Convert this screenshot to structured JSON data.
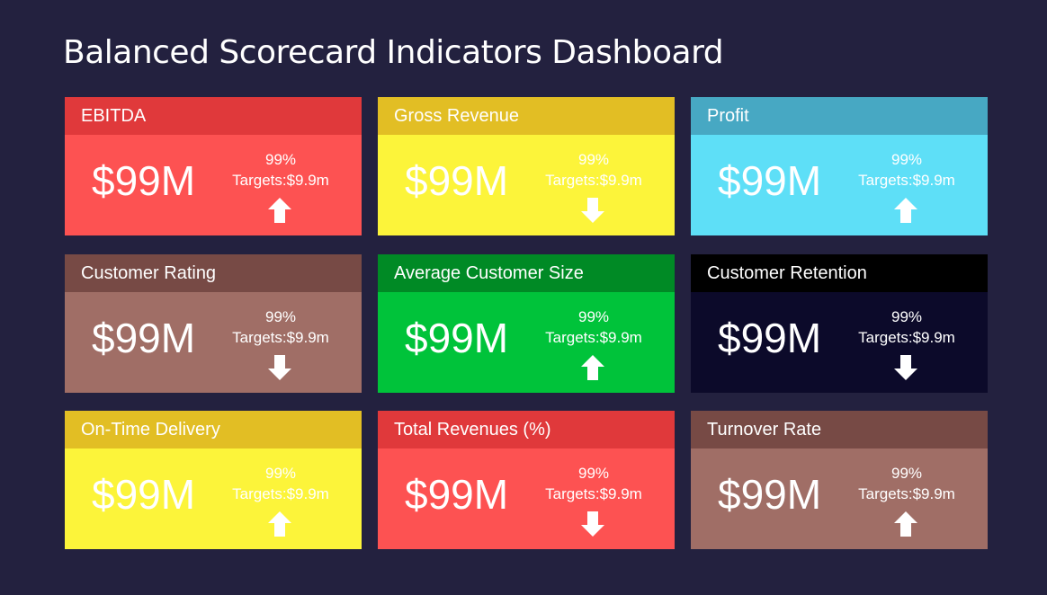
{
  "header": {
    "title": "Balanced Scorecard Indicators Dashboard"
  },
  "cards": [
    {
      "title": "EBITDA",
      "value": "$99M",
      "percent": "99%",
      "target": "Targets:$9.9m",
      "trend": "up",
      "header_color": "#e0393b",
      "body_color": "#fd5252"
    },
    {
      "title": "Gross Revenue",
      "value": "$99M",
      "percent": "99%",
      "target": "Targets:$9.9m",
      "trend": "down",
      "header_color": "#e2be24",
      "body_color": "#fcf43a"
    },
    {
      "title": "Profit",
      "value": "$99M",
      "percent": "99%",
      "target": "Targets:$9.9m",
      "trend": "up",
      "header_color": "#47a8c3",
      "body_color": "#5edff7"
    },
    {
      "title": "Customer Rating",
      "value": "$99M",
      "percent": "99%",
      "target": "Targets:$9.9m",
      "trend": "down",
      "header_color": "#774a45",
      "body_color": "#a06e66"
    },
    {
      "title": "Average Customer Size",
      "value": "$99M",
      "percent": "99%",
      "target": "Targets:$9.9m",
      "trend": "up",
      "header_color": "#008a25",
      "body_color": "#00c33a"
    },
    {
      "title": "Customer Retention",
      "value": "$99M",
      "percent": "99%",
      "target": "Targets:$9.9m",
      "trend": "down",
      "header_color": "#000000",
      "body_color": "#0c0a2a"
    },
    {
      "title": "On-Time Delivery",
      "value": "$99M",
      "percent": "99%",
      "target": "Targets:$9.9m",
      "trend": "up",
      "header_color": "#e2be24",
      "body_color": "#fcf43a"
    },
    {
      "title": "Total Revenues (%)",
      "value": "$99M",
      "percent": "99%",
      "target": "Targets:$9.9m",
      "trend": "down",
      "header_color": "#e0393b",
      "body_color": "#fd5252"
    },
    {
      "title": "Turnover Rate",
      "value": "$99M",
      "percent": "99%",
      "target": "Targets:$9.9m",
      "trend": "up",
      "header_color": "#774a45",
      "body_color": "#a06e66"
    }
  ]
}
